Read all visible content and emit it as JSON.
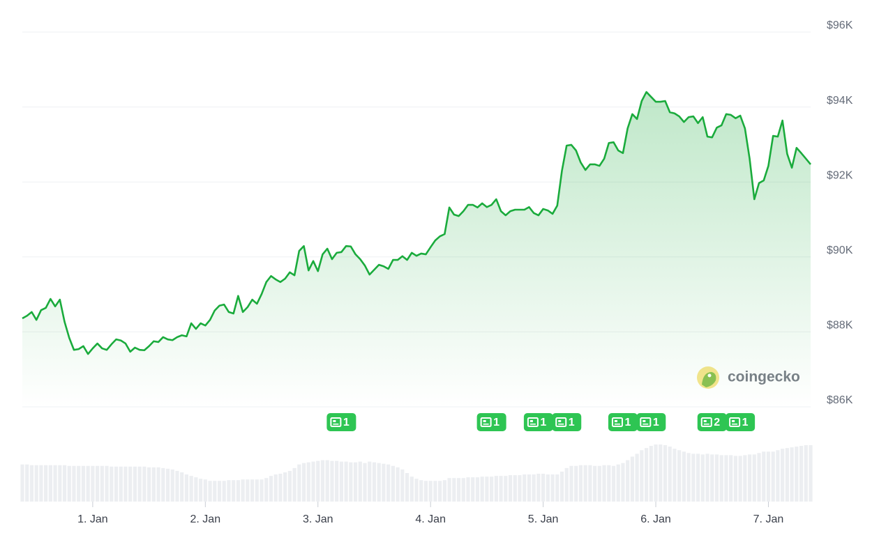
{
  "chart_data": {
    "type": "line",
    "series": [
      {
        "color": "#1aab3c",
        "values": [
          88.36,
          88.43,
          88.53,
          88.32,
          88.58,
          88.64,
          88.88,
          88.68,
          88.86,
          88.27,
          87.84,
          87.52,
          87.54,
          87.62,
          87.41,
          87.56,
          87.69,
          87.56,
          87.52,
          87.67,
          87.8,
          87.77,
          87.69,
          87.47,
          87.58,
          87.52,
          87.51,
          87.62,
          87.75,
          87.73,
          87.86,
          87.8,
          87.78,
          87.86,
          87.91,
          87.88,
          88.23,
          88.08,
          88.23,
          88.17,
          88.32,
          88.57,
          88.7,
          88.73,
          88.53,
          88.49,
          88.96,
          88.53,
          88.66,
          88.86,
          88.75,
          89.01,
          89.33,
          89.49,
          89.4,
          89.33,
          89.42,
          89.59,
          89.51,
          90.16,
          90.29,
          89.64,
          89.89,
          89.62,
          90.07,
          90.22,
          89.94,
          90.11,
          90.13,
          90.29,
          90.28,
          90.07,
          89.94,
          89.77,
          89.53,
          89.66,
          89.79,
          89.75,
          89.68,
          89.92,
          89.92,
          90.02,
          89.92,
          90.11,
          90.03,
          90.09,
          90.07,
          90.26,
          90.44,
          90.55,
          90.61,
          91.32,
          91.13,
          91.09,
          91.22,
          91.39,
          91.39,
          91.32,
          91.43,
          91.33,
          91.39,
          91.54,
          91.22,
          91.11,
          91.22,
          91.26,
          91.26,
          91.26,
          91.33,
          91.17,
          91.11,
          91.28,
          91.24,
          91.15,
          91.37,
          92.3,
          92.97,
          92.99,
          92.84,
          92.52,
          92.32,
          92.47,
          92.47,
          92.43,
          92.62,
          93.04,
          93.06,
          92.84,
          92.77,
          93.43,
          93.81,
          93.68,
          94.16,
          94.4,
          94.27,
          94.14,
          94.14,
          94.16,
          93.86,
          93.83,
          93.75,
          93.6,
          93.73,
          93.75,
          93.57,
          93.73,
          93.21,
          93.19,
          93.45,
          93.51,
          93.81,
          93.79,
          93.7,
          93.77,
          93.43,
          92.62,
          91.54,
          91.97,
          92.04,
          92.43,
          93.23,
          93.21,
          93.64,
          92.75,
          92.38,
          92.91,
          92.77,
          92.62,
          92.47
        ]
      }
    ],
    "categories": [
      null,
      null,
      null,
      null,
      null,
      null,
      null,
      null,
      null,
      null,
      null,
      null,
      null,
      null,
      null,
      "1. Jan",
      null,
      null,
      null,
      null,
      null,
      null,
      null,
      null,
      null,
      null,
      null,
      null,
      null,
      null,
      null,
      null,
      null,
      null,
      null,
      null,
      null,
      null,
      null,
      "2. Jan",
      null,
      null,
      null,
      null,
      null,
      null,
      null,
      null,
      null,
      null,
      null,
      null,
      null,
      null,
      null,
      null,
      null,
      null,
      null,
      null,
      null,
      null,
      null,
      "3. Jan",
      null,
      null,
      null,
      null,
      null,
      null,
      null,
      null,
      null,
      null,
      null,
      null,
      null,
      null,
      null,
      null,
      null,
      null,
      null,
      null,
      null,
      null,
      null,
      "4. Jan",
      null,
      null,
      null,
      null,
      null,
      null,
      null,
      null,
      null,
      null,
      null,
      null,
      null,
      null,
      null,
      null,
      null,
      null,
      null,
      null,
      null,
      null,
      null,
      "5. Jan",
      null,
      null,
      null,
      null,
      null,
      null,
      null,
      null,
      null,
      null,
      null,
      null,
      null,
      null,
      null,
      null,
      null,
      null,
      null,
      null,
      null,
      null,
      null,
      "6. Jan",
      null,
      null,
      null,
      null,
      null,
      null,
      null,
      null,
      null,
      null,
      null,
      null,
      null,
      null,
      null,
      null,
      null,
      null,
      null,
      null,
      null,
      null,
      null,
      "7. Jan",
      null,
      null,
      null,
      null,
      null,
      null,
      null,
      null,
      null
    ],
    "ylim": [
      86,
      96
    ],
    "yticks": [
      {
        "value": 86,
        "label": "$86K"
      },
      {
        "value": 88,
        "label": "$88K"
      },
      {
        "value": 90,
        "label": "$90K"
      },
      {
        "value": 92,
        "label": "$92K"
      },
      {
        "value": 94,
        "label": "$94K"
      },
      {
        "value": 96,
        "label": "$96K"
      }
    ],
    "grid": true,
    "volume": [
      52,
      52,
      51,
      51,
      51,
      51,
      51,
      51,
      51,
      51,
      50,
      50,
      50,
      50,
      50,
      50,
      50,
      50,
      50,
      49,
      49,
      49,
      49,
      49,
      49,
      49,
      49,
      48,
      48,
      48,
      47,
      46,
      45,
      43,
      41,
      38,
      36,
      34,
      32,
      31,
      29,
      29,
      29,
      29,
      30,
      30,
      30,
      31,
      31,
      31,
      31,
      31,
      33,
      36,
      38,
      39,
      41,
      43,
      47,
      52,
      54,
      55,
      56,
      57,
      58,
      58,
      57,
      57,
      56,
      56,
      55,
      55,
      56,
      54,
      56,
      55,
      54,
      53,
      52,
      50,
      48,
      45,
      40,
      35,
      32,
      30,
      29,
      29,
      29,
      29,
      30,
      33,
      33,
      33,
      33,
      34,
      34,
      34,
      35,
      35,
      35,
      36,
      36,
      36,
      37,
      37,
      37,
      38,
      38,
      38,
      39,
      39,
      38,
      38,
      38,
      42,
      47,
      50,
      50,
      51,
      51,
      51,
      50,
      50,
      51,
      51,
      50,
      52,
      54,
      58,
      63,
      67,
      72,
      75,
      78,
      80,
      80,
      79,
      77,
      74,
      72,
      70,
      68,
      67,
      67,
      66,
      67,
      66,
      66,
      65,
      65,
      65,
      64,
      64,
      65,
      66,
      66,
      68,
      70,
      70,
      70,
      72,
      74,
      75,
      76,
      77,
      78,
      79,
      79
    ],
    "volume_color": "#eceef1",
    "news": [
      {
        "index": 68,
        "count": 1
      },
      {
        "index": 100,
        "count": 1
      },
      {
        "index": 110,
        "count": 1
      },
      {
        "index": 116,
        "count": 1
      },
      {
        "index": 128,
        "count": 1
      },
      {
        "index": 134,
        "count": 1
      },
      {
        "index": 147,
        "count": 2
      },
      {
        "index": 153,
        "count": 1
      }
    ],
    "news_color": "#2ec553",
    "watermark": "coingecko"
  }
}
